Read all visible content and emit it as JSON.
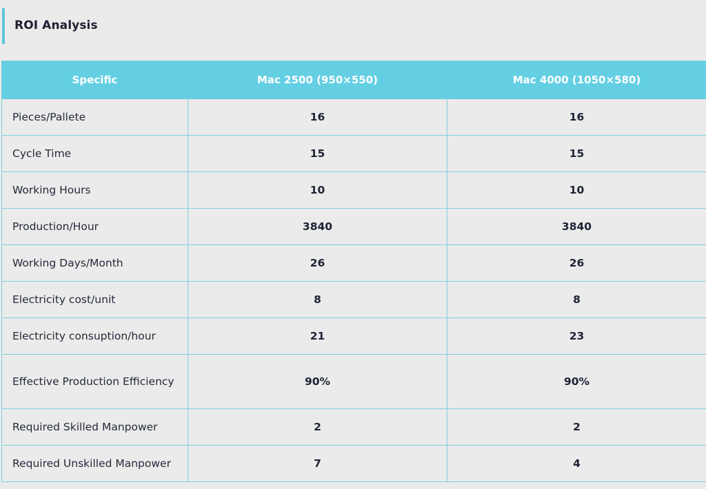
{
  "section": {
    "title": "ROI Analysis"
  },
  "table": {
    "headers": [
      "Specific",
      "Mac 2500 (950×550)",
      "Mac 4000 (1050×580)"
    ],
    "rows": [
      {
        "label": "Pieces/Pallete",
        "mac2500": "16",
        "mac4000": "16"
      },
      {
        "label": "Cycle Time",
        "mac2500": "15",
        "mac4000": "15"
      },
      {
        "label": "Working Hours",
        "mac2500": "10",
        "mac4000": "10"
      },
      {
        "label": "Production/Hour",
        "mac2500": "3840",
        "mac4000": "3840"
      },
      {
        "label": "Working Days/Month",
        "mac2500": "26",
        "mac4000": "26"
      },
      {
        "label": "Electricity cost/unit",
        "mac2500": "8",
        "mac4000": "8"
      },
      {
        "label": "Electricity consuption/hour",
        "mac2500": "21",
        "mac4000": "23"
      },
      {
        "label": "Effective Production Efficiency",
        "mac2500": "90%",
        "mac4000": "90%"
      },
      {
        "label": "Required Skilled Manpower",
        "mac2500": "2",
        "mac4000": "2"
      },
      {
        "label": "Required Unskilled Manpower",
        "mac2500": "7",
        "mac4000": "4"
      }
    ]
  },
  "colors": {
    "accent": "#64cfe3",
    "background": "#ebebeb",
    "border": "#7fcfdf"
  }
}
